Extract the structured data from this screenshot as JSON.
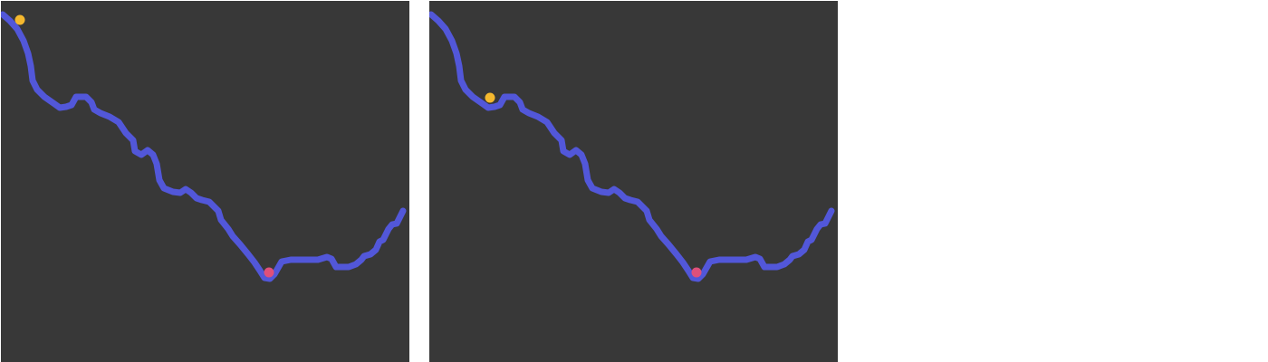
{
  "colors": {
    "background": "#ffffff",
    "panel": "#383838",
    "terrain_line": "#5257d9",
    "agent": "#f5b82e",
    "goal": "#e0507a"
  },
  "icons": {
    "agent": "agent-dot-icon",
    "goal": "goal-dot-icon"
  },
  "panels": [
    {
      "name": "frame-1"
    },
    {
      "name": "frame-2"
    }
  ]
}
